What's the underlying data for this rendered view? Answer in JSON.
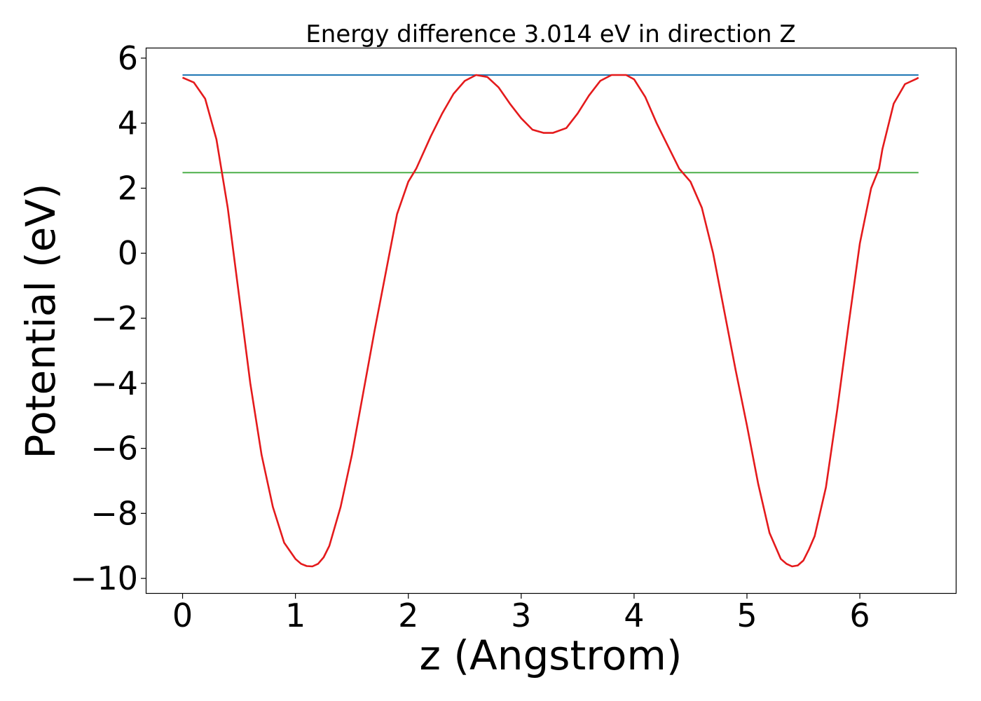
{
  "chart_data": {
    "type": "line",
    "title": "Energy difference 3.014 eV in direction Z",
    "xlabel": "z (Angstrom)",
    "ylabel": "Potential (eV)",
    "xlim": [
      -0.32,
      6.85
    ],
    "ylim": [
      -10.45,
      6.3
    ],
    "xticks": [
      0,
      1,
      2,
      3,
      4,
      5,
      6
    ],
    "yticks": [
      6,
      4,
      2,
      0,
      -2,
      -4,
      -6,
      -8,
      -10
    ],
    "grid": false,
    "legend": "none",
    "series": [
      {
        "color": "#e41a1c",
        "x": [
          0.0,
          0.1,
          0.2,
          0.3,
          0.4,
          0.5,
          0.6,
          0.7,
          0.8,
          0.9,
          1.0,
          1.05,
          1.1,
          1.15,
          1.2,
          1.25,
          1.3,
          1.4,
          1.5,
          1.6,
          1.7,
          1.8,
          1.9,
          2.0,
          2.07,
          2.2,
          2.3,
          2.4,
          2.5,
          2.6,
          2.7,
          2.8,
          2.9,
          3.0,
          3.1,
          3.2,
          3.28,
          3.4,
          3.5,
          3.6,
          3.7,
          3.8,
          3.93,
          4.0,
          4.1,
          4.2,
          4.3,
          4.4,
          4.5,
          4.6,
          4.7,
          4.8,
          4.9,
          5.0,
          5.1,
          5.2,
          5.3,
          5.35,
          5.4,
          5.45,
          5.5,
          5.55,
          5.6,
          5.7,
          5.8,
          5.9,
          6.0,
          6.1,
          6.17,
          6.2,
          6.3,
          6.4,
          6.5,
          6.52
        ],
        "y": [
          5.4,
          5.25,
          4.75,
          3.5,
          1.4,
          -1.3,
          -4.0,
          -6.2,
          -7.8,
          -8.9,
          -9.4,
          -9.55,
          -9.62,
          -9.63,
          -9.55,
          -9.35,
          -9.0,
          -7.8,
          -6.2,
          -4.3,
          -2.4,
          -0.6,
          1.2,
          2.2,
          2.6,
          3.6,
          4.3,
          4.9,
          5.3,
          5.48,
          5.42,
          5.1,
          4.6,
          4.15,
          3.8,
          3.7,
          3.7,
          3.85,
          4.3,
          4.85,
          5.3,
          5.48,
          5.48,
          5.35,
          4.8,
          4.0,
          3.3,
          2.6,
          2.2,
          1.4,
          0.0,
          -1.8,
          -3.6,
          -5.3,
          -7.1,
          -8.6,
          -9.4,
          -9.55,
          -9.63,
          -9.6,
          -9.45,
          -9.1,
          -8.7,
          -7.2,
          -4.8,
          -2.2,
          0.3,
          2.0,
          2.6,
          3.2,
          4.6,
          5.2,
          5.36,
          5.4
        ]
      },
      {
        "color": "#1f77b4",
        "x": [
          0.0,
          6.52
        ],
        "y": [
          5.48,
          5.48
        ]
      },
      {
        "color": "#4daf4a",
        "x": [
          0.0,
          6.52
        ],
        "y": [
          2.48,
          2.48
        ]
      }
    ]
  }
}
